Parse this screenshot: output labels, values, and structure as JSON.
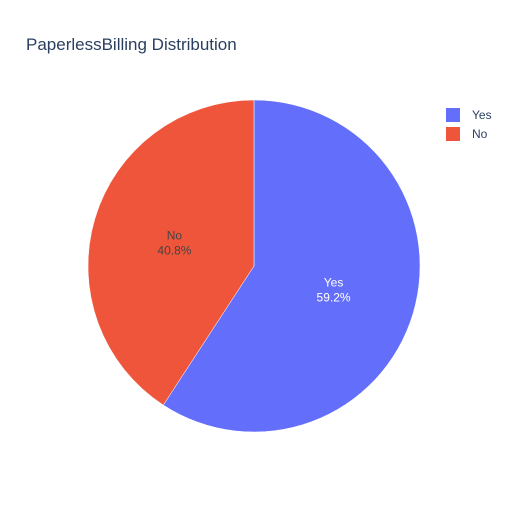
{
  "chart_data": {
    "type": "pie",
    "title": "PaperlessBilling Distribution",
    "labels": [
      "Yes",
      "No"
    ],
    "percentages": [
      "59.2%",
      "40.8%"
    ],
    "values": [
      59.2,
      40.8
    ],
    "colors": [
      "#636efa",
      "#ef553b"
    ],
    "label_text_colors": [
      "#ffffff",
      "#444444"
    ],
    "legend": {
      "position": "top-right",
      "items": [
        {
          "label": "Yes",
          "color": "#636efa"
        },
        {
          "label": "No",
          "color": "#ef553b"
        }
      ]
    },
    "direction": "clockwise",
    "start": "top"
  }
}
